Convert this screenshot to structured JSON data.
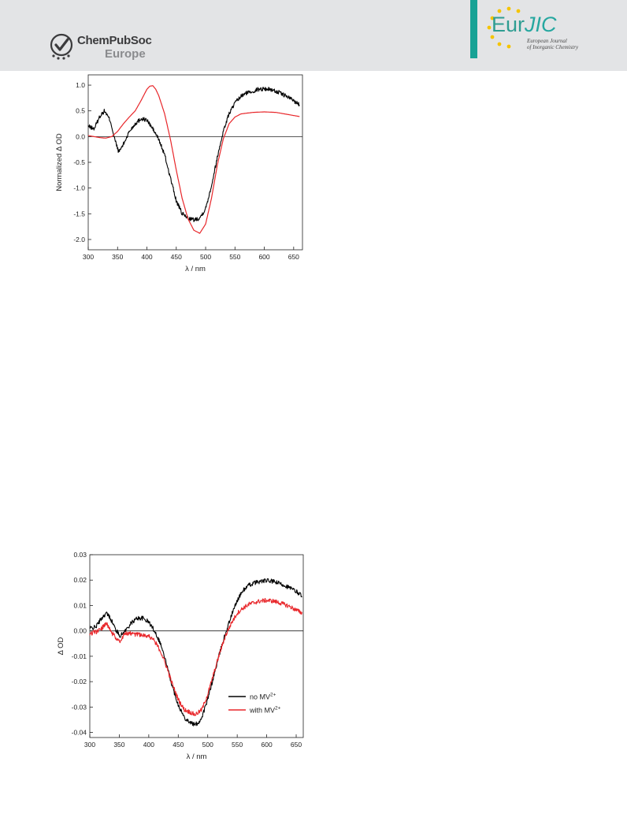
{
  "header": {
    "publisher_name": "ChemPubSoc",
    "publisher_sub": "Europe",
    "journal_title_part1": "Eur",
    "journal_title_part2": "JIC",
    "journal_sub1": "European Journal",
    "journal_sub2": "of Inorganic Chemistry",
    "colors": {
      "band": "#e3e4e6",
      "accent": "#17a295",
      "star": "#f5c400"
    }
  },
  "chart_data": [
    {
      "type": "line",
      "title": "",
      "xlabel": "λ / nm",
      "ylabel": "Normalized Δ OD",
      "xlim": [
        300,
        665
      ],
      "ylim": [
        -2.2,
        1.2
      ],
      "xticks": [
        300,
        350,
        400,
        450,
        500,
        550,
        600,
        650
      ],
      "xtick_labels": [
        "300",
        "350",
        "400",
        "450",
        "500",
        "550",
        "600",
        "650"
      ],
      "yticks": [
        1.0,
        0.5,
        0.0,
        -0.5,
        -1.0,
        -1.5,
        -2.0
      ],
      "ytick_labels": [
        "1.0",
        "0.5",
        "0.0",
        "-0.5",
        "-1.0",
        "-1.5",
        "-2.0"
      ],
      "zero_line": true,
      "grid": false,
      "legend": null,
      "series": [
        {
          "color": "#000000",
          "noisy": true,
          "x": [
            300,
            310,
            320,
            328,
            338,
            345,
            352,
            360,
            370,
            380,
            390,
            400,
            410,
            420,
            430,
            440,
            450,
            460,
            470,
            480,
            490,
            500,
            510,
            520,
            530,
            540,
            550,
            560,
            570,
            580,
            590,
            600,
            610,
            620,
            630,
            640,
            650,
            660
          ],
          "y": [
            0.2,
            0.15,
            0.4,
            0.5,
            0.3,
            -0.05,
            -0.3,
            -0.15,
            0.1,
            0.25,
            0.35,
            0.32,
            0.15,
            -0.05,
            -0.35,
            -0.8,
            -1.25,
            -1.5,
            -1.58,
            -1.62,
            -1.58,
            -1.4,
            -0.95,
            -0.4,
            0.1,
            0.45,
            0.65,
            0.78,
            0.85,
            0.88,
            0.92,
            0.93,
            0.92,
            0.88,
            0.83,
            0.77,
            0.7,
            0.62
          ]
        },
        {
          "color": "#e8262a",
          "noisy": false,
          "x": [
            300,
            310,
            320,
            330,
            340,
            350,
            360,
            370,
            380,
            390,
            400,
            405,
            410,
            415,
            420,
            430,
            440,
            450,
            460,
            470,
            480,
            490,
            500,
            510,
            520,
            530,
            540,
            550,
            560,
            580,
            600,
            620,
            640,
            660
          ],
          "y": [
            0.02,
            0.0,
            -0.02,
            -0.03,
            0.0,
            0.1,
            0.25,
            0.38,
            0.5,
            0.7,
            0.92,
            0.98,
            0.99,
            0.92,
            0.8,
            0.45,
            -0.05,
            -0.65,
            -1.2,
            -1.6,
            -1.82,
            -1.88,
            -1.7,
            -1.2,
            -0.55,
            -0.05,
            0.25,
            0.38,
            0.44,
            0.47,
            0.48,
            0.47,
            0.43,
            0.39
          ]
        }
      ]
    },
    {
      "type": "line",
      "title": "",
      "xlabel": "λ / nm",
      "ylabel": "Δ OD",
      "xlim": [
        300,
        662
      ],
      "ylim": [
        -0.042,
        0.03
      ],
      "xticks": [
        300,
        350,
        400,
        450,
        500,
        550,
        600,
        650
      ],
      "xtick_labels": [
        "300",
        "350",
        "400",
        "450",
        "500",
        "550",
        "600",
        "650"
      ],
      "yticks": [
        0.03,
        0.02,
        0.01,
        0.0,
        -0.01,
        -0.02,
        -0.03,
        -0.04
      ],
      "ytick_labels": [
        "0.03",
        "0.02",
        "0.01",
        "0.00",
        "-0.01",
        "-0.02",
        "-0.03",
        "-0.04"
      ],
      "zero_line": true,
      "grid": false,
      "legend": "bottom-right",
      "series": [
        {
          "name": "no MV2+",
          "legend_base": "no MV",
          "legend_sup": "2+",
          "color": "#000000",
          "noisy": true,
          "x": [
            300,
            310,
            320,
            328,
            335,
            345,
            352,
            360,
            370,
            380,
            390,
            400,
            410,
            420,
            430,
            440,
            450,
            460,
            470,
            478,
            485,
            490,
            500,
            510,
            520,
            530,
            540,
            550,
            560,
            570,
            580,
            590,
            600,
            610,
            620,
            630,
            640,
            650,
            660
          ],
          "y": [
            0.001,
            0.0015,
            0.005,
            0.007,
            0.005,
            0.0,
            -0.002,
            0.0,
            0.003,
            0.005,
            0.005,
            0.0035,
            0.0,
            -0.005,
            -0.013,
            -0.022,
            -0.029,
            -0.034,
            -0.036,
            -0.037,
            -0.036,
            -0.034,
            -0.027,
            -0.018,
            -0.009,
            -0.001,
            0.006,
            0.012,
            0.016,
            0.018,
            0.019,
            0.0195,
            0.0198,
            0.0195,
            0.0188,
            0.018,
            0.0168,
            0.0155,
            0.014
          ]
        },
        {
          "name": "with MV2+",
          "legend_base": "with MV",
          "legend_sup": "2+",
          "color": "#e8262a",
          "noisy": true,
          "x": [
            300,
            310,
            320,
            328,
            335,
            345,
            352,
            360,
            370,
            380,
            390,
            400,
            410,
            420,
            430,
            440,
            450,
            460,
            470,
            478,
            485,
            490,
            500,
            510,
            520,
            530,
            540,
            550,
            560,
            570,
            580,
            590,
            600,
            610,
            620,
            630,
            640,
            650,
            660
          ],
          "y": [
            -0.001,
            -0.0005,
            0.001,
            0.003,
            0.0,
            -0.003,
            -0.004,
            -0.001,
            -0.001,
            -0.0015,
            -0.0015,
            -0.002,
            -0.004,
            -0.008,
            -0.014,
            -0.021,
            -0.027,
            -0.031,
            -0.032,
            -0.033,
            -0.032,
            -0.031,
            -0.025,
            -0.017,
            -0.009,
            -0.002,
            0.003,
            0.007,
            0.009,
            0.0105,
            0.0112,
            0.0118,
            0.012,
            0.0118,
            0.0112,
            0.0104,
            0.0095,
            0.0082,
            0.007
          ]
        }
      ]
    }
  ]
}
